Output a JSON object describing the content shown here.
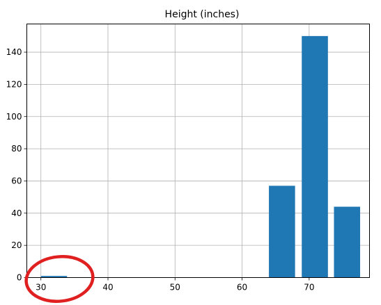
{
  "chart_data": {
    "type": "bar",
    "title": "Height (inches)",
    "xlabel": "",
    "ylabel": "",
    "xlim": [
      27.9,
      79
    ],
    "ylim": [
      0,
      157.5
    ],
    "xticks": [
      30,
      40,
      50,
      60,
      70
    ],
    "yticks": [
      0,
      20,
      40,
      60,
      80,
      100,
      120,
      140
    ],
    "grid": true,
    "bins": [
      {
        "start": 30.0,
        "end": 33.9,
        "value": 1
      },
      {
        "start": 64.0,
        "end": 67.9,
        "value": 57
      },
      {
        "start": 68.9,
        "end": 72.8,
        "value": 150
      },
      {
        "start": 73.7,
        "end": 77.6,
        "value": 44
      }
    ],
    "annotation": {
      "type": "circle",
      "color": "#e02020",
      "target_bin": 0
    }
  },
  "colors": {
    "bar": "#1f77b4",
    "grid": "#b0b0b0",
    "annotation": "#e02020"
  }
}
